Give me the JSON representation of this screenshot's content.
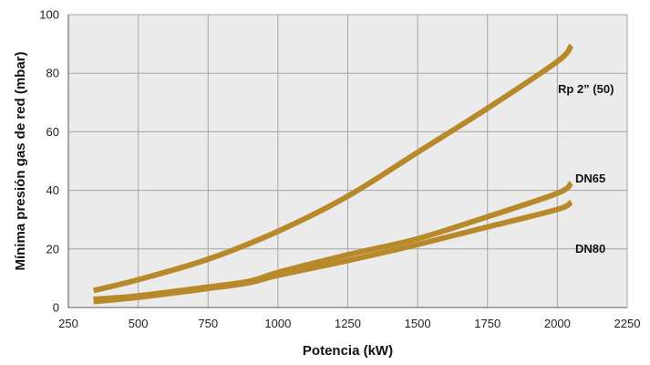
{
  "chart_data": {
    "type": "line",
    "title": "",
    "xlabel": "Potencia (kW)",
    "ylabel": "Mínima presión gas de red (mbar)",
    "xlim": [
      250,
      2250
    ],
    "ylim": [
      0,
      100
    ],
    "xticks": [
      250,
      500,
      750,
      1000,
      1250,
      1500,
      1750,
      2000,
      2250
    ],
    "yticks": [
      0,
      20,
      40,
      60,
      80,
      100
    ],
    "grid": true,
    "plot_background": "#ebebeb",
    "grid_color": "#a6a6a6",
    "line_color": "#b8892a",
    "series": [
      {
        "name": "Rp 2” (50)",
        "x": [
          340,
          500,
          750,
          1000,
          1250,
          1500,
          1750,
          2000,
          2050
        ],
        "y": [
          5.8,
          9.5,
          16.5,
          26,
          38,
          53,
          68,
          84,
          89.5
        ]
      },
      {
        "name": "DN65",
        "x": [
          340,
          500,
          750,
          900,
          1000,
          1250,
          1500,
          1750,
          2000,
          2050
        ],
        "y": [
          2.8,
          4,
          7,
          9,
          12,
          18,
          23.5,
          31,
          39,
          42.5
        ]
      },
      {
        "name": "DN80",
        "x": [
          340,
          500,
          750,
          900,
          1000,
          1250,
          1500,
          1750,
          2000,
          2050
        ],
        "y": [
          2,
          3.5,
          6.5,
          8.5,
          11,
          16,
          21.5,
          27.5,
          33.5,
          36
        ]
      }
    ]
  }
}
